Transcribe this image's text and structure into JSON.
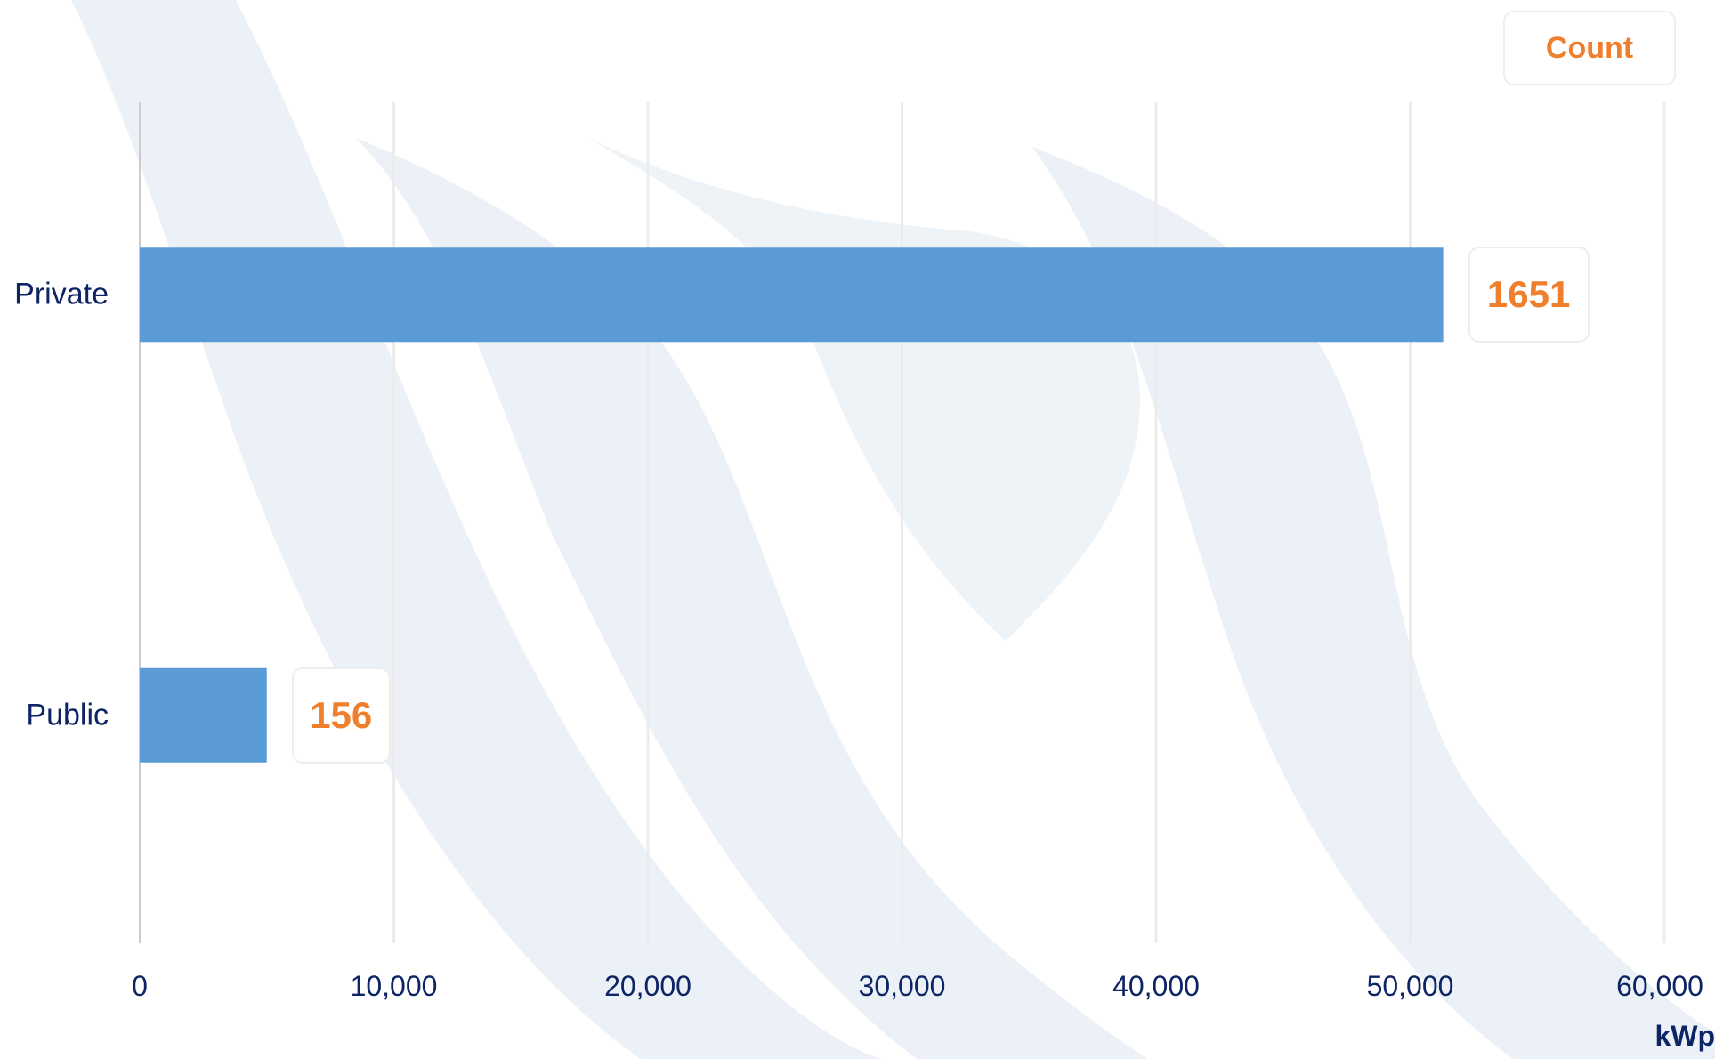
{
  "colors": {
    "bar": "#5b9bd5",
    "label_text": "#f07f2d",
    "axis_text": "#0d2465",
    "grid": "#ececec",
    "watermark": "#dde7f2"
  },
  "legend": {
    "label": "Count"
  },
  "chart_data": {
    "type": "bar",
    "orientation": "horizontal",
    "categories": [
      "Private",
      "Public"
    ],
    "values": [
      51300,
      5000
    ],
    "data_labels": [
      "1651",
      "156"
    ],
    "xlim": [
      0,
      60000
    ],
    "x_ticks": [
      "0",
      "10,000",
      "20,000",
      "30,000",
      "40,000",
      "50,000",
      "60,000"
    ],
    "x_unit": "kWp",
    "grid": true
  }
}
